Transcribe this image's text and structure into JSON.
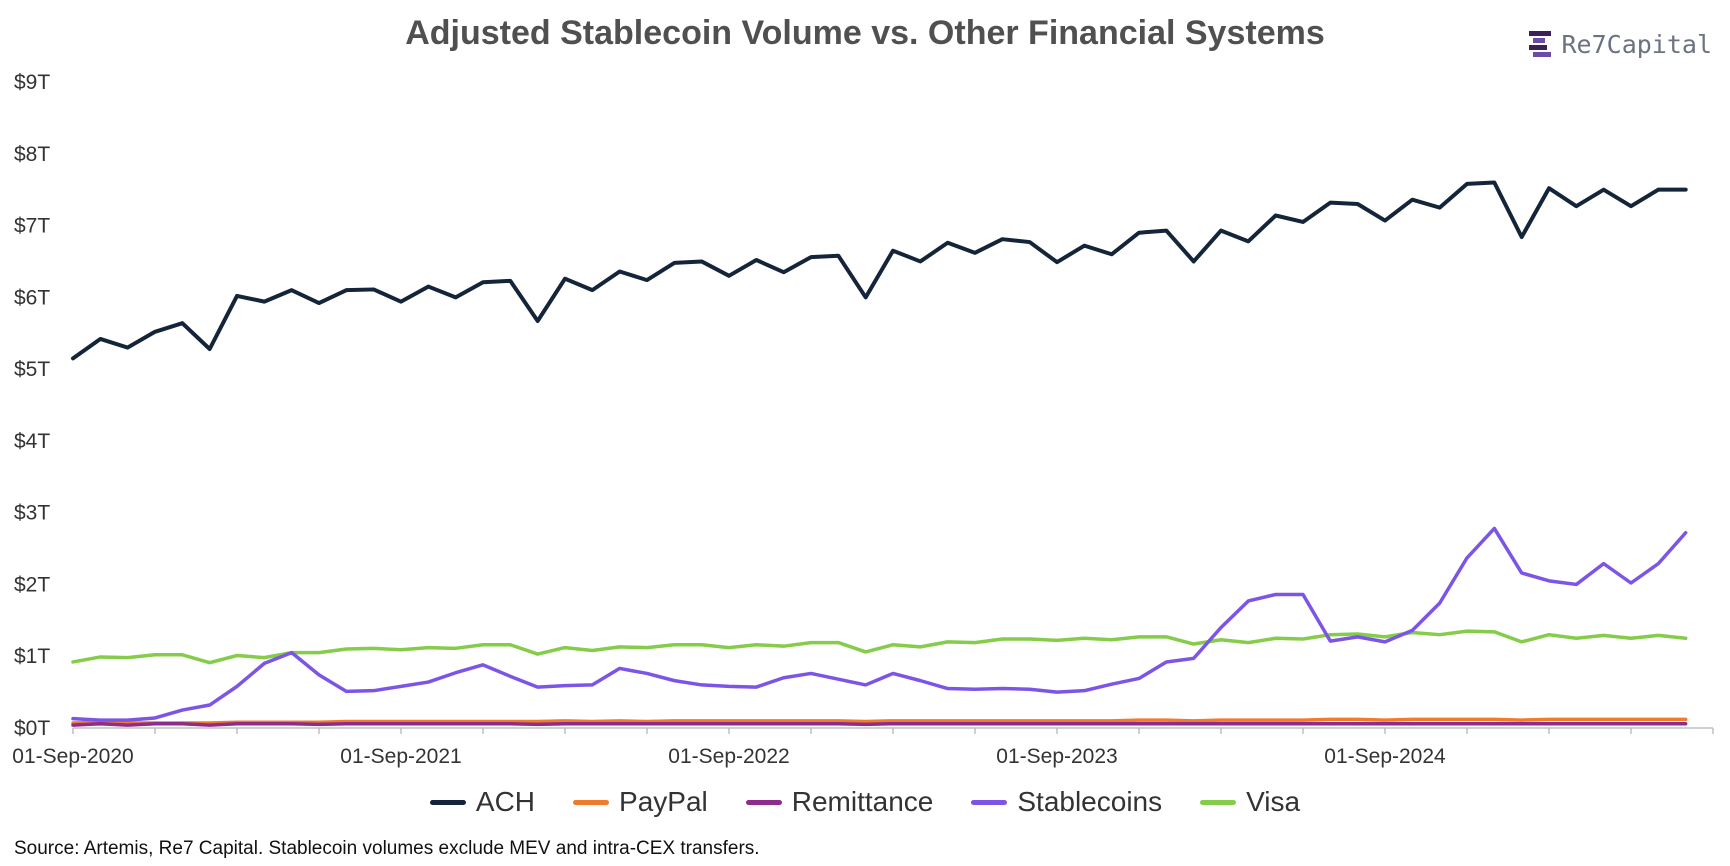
{
  "header": {
    "title": "Adjusted Stablecoin Volume vs. Other Financial Systems",
    "brand": "Re7Capital",
    "brand_icon": "re7-logo-icon"
  },
  "footer": {
    "source": "Source: Artemis, Re7 Capital. Stablecoin volumes exclude MEV and intra-CEX transfers."
  },
  "chart_data": {
    "type": "line",
    "title": "Adjusted Stablecoin Volume vs. Other Financial Systems",
    "xlabel": "",
    "ylabel": "",
    "ylim": [
      0,
      9
    ],
    "y_unit": "trillion USD",
    "y_ticks": [
      "$0T",
      "$1T",
      "$2T",
      "$3T",
      "$4T",
      "$5T",
      "$6T",
      "$7T",
      "$8T",
      "$9T"
    ],
    "x_start": "01-Sep-2020",
    "x_ticks": [
      "01-Sep-2020",
      "01-Sep-2021",
      "01-Sep-2022",
      "01-Sep-2023",
      "01-Sep-2024"
    ],
    "x_tick_month_offsets": [
      0,
      12,
      24,
      36,
      48
    ],
    "x_months": 60,
    "grid": false,
    "legend_position": "bottom",
    "series": [
      {
        "name": "ACH",
        "color": "#14253a",
        "values": [
          5.15,
          5.42,
          5.3,
          5.52,
          5.64,
          5.28,
          6.02,
          5.94,
          6.1,
          5.92,
          6.1,
          6.11,
          5.94,
          6.15,
          6.0,
          6.21,
          6.23,
          5.67,
          6.26,
          6.1,
          6.36,
          6.24,
          6.48,
          6.5,
          6.3,
          6.52,
          6.35,
          6.56,
          6.58,
          6.0,
          6.65,
          6.5,
          6.76,
          6.62,
          6.81,
          6.77,
          6.49,
          6.72,
          6.6,
          6.9,
          6.93,
          6.5,
          6.93,
          6.78,
          7.14,
          7.05,
          7.32,
          7.3,
          7.07,
          7.36,
          7.25,
          7.58,
          7.6,
          6.84,
          7.52,
          7.27,
          7.5,
          7.27,
          7.5,
          7.5
        ]
      },
      {
        "name": "PayPal",
        "color": "#f07c2a",
        "values": [
          0.07,
          0.08,
          0.07,
          0.07,
          0.07,
          0.07,
          0.08,
          0.08,
          0.08,
          0.08,
          0.09,
          0.09,
          0.09,
          0.09,
          0.09,
          0.09,
          0.09,
          0.09,
          0.1,
          0.09,
          0.1,
          0.09,
          0.1,
          0.1,
          0.1,
          0.1,
          0.1,
          0.1,
          0.1,
          0.09,
          0.1,
          0.1,
          0.1,
          0.1,
          0.1,
          0.1,
          0.1,
          0.1,
          0.1,
          0.11,
          0.11,
          0.1,
          0.11,
          0.11,
          0.11,
          0.11,
          0.12,
          0.12,
          0.11,
          0.12,
          0.12,
          0.12,
          0.12,
          0.11,
          0.12,
          0.12,
          0.12,
          0.12,
          0.12,
          0.12
        ]
      },
      {
        "name": "Remittance",
        "color": "#8e2b8c",
        "values": [
          0.04,
          0.06,
          0.04,
          0.06,
          0.06,
          0.04,
          0.06,
          0.06,
          0.06,
          0.05,
          0.06,
          0.06,
          0.06,
          0.06,
          0.06,
          0.06,
          0.06,
          0.05,
          0.06,
          0.06,
          0.06,
          0.06,
          0.06,
          0.06,
          0.06,
          0.06,
          0.06,
          0.06,
          0.06,
          0.05,
          0.06,
          0.06,
          0.06,
          0.06,
          0.06,
          0.06,
          0.06,
          0.06,
          0.06,
          0.06,
          0.06,
          0.06,
          0.06,
          0.06,
          0.06,
          0.06,
          0.06,
          0.06,
          0.06,
          0.06,
          0.06,
          0.06,
          0.06,
          0.06,
          0.06,
          0.06,
          0.06,
          0.06,
          0.06,
          0.06
        ]
      },
      {
        "name": "Stablecoins",
        "color": "#7d55e6",
        "values": [
          0.13,
          0.11,
          0.11,
          0.14,
          0.25,
          0.32,
          0.58,
          0.9,
          1.05,
          0.74,
          0.51,
          0.52,
          0.58,
          0.64,
          0.77,
          0.88,
          0.72,
          0.57,
          0.59,
          0.6,
          0.83,
          0.76,
          0.66,
          0.6,
          0.58,
          0.57,
          0.7,
          0.76,
          0.68,
          0.6,
          0.76,
          0.66,
          0.55,
          0.54,
          0.55,
          0.54,
          0.5,
          0.52,
          0.61,
          0.69,
          0.92,
          0.97,
          1.4,
          1.77,
          1.86,
          1.86,
          1.21,
          1.27,
          1.2,
          1.36,
          1.74,
          2.37,
          2.78,
          2.16,
          2.05,
          2.0,
          2.29,
          2.02,
          2.29,
          2.72
        ]
      },
      {
        "name": "Visa",
        "color": "#85cc4a",
        "values": [
          0.92,
          0.99,
          0.98,
          1.02,
          1.02,
          0.91,
          1.01,
          0.98,
          1.05,
          1.05,
          1.1,
          1.11,
          1.09,
          1.12,
          1.11,
          1.16,
          1.16,
          1.03,
          1.12,
          1.08,
          1.13,
          1.12,
          1.16,
          1.16,
          1.12,
          1.16,
          1.14,
          1.19,
          1.19,
          1.06,
          1.16,
          1.13,
          1.2,
          1.19,
          1.24,
          1.24,
          1.22,
          1.25,
          1.23,
          1.27,
          1.27,
          1.17,
          1.23,
          1.19,
          1.25,
          1.24,
          1.3,
          1.31,
          1.27,
          1.33,
          1.3,
          1.35,
          1.34,
          1.2,
          1.3,
          1.25,
          1.29,
          1.25,
          1.29,
          1.25
        ]
      }
    ]
  }
}
